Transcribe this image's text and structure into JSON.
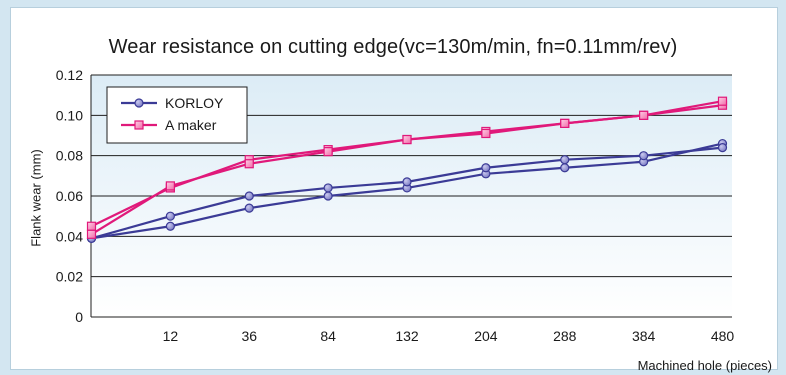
{
  "chart_data": {
    "type": "line",
    "title": "Wear resistance on cutting edge(vc=130m/min, fn=0.11mm/rev)",
    "xlabel": "Machined hole (pieces)",
    "ylabel": "Flank wear (mm)",
    "categories": [
      "",
      "12",
      "36",
      "84",
      "132",
      "204",
      "288",
      "384",
      "480"
    ],
    "yticks": [
      "0",
      "0.02",
      "0.04",
      "0.06",
      "0.08",
      "0.10",
      "0.12"
    ],
    "ylim": [
      0,
      0.12
    ],
    "grid": true,
    "legend_position": "top-left",
    "series": [
      {
        "name": "KORLOY",
        "color": "#3b3b96",
        "marker": "circle",
        "lines": [
          [
            0.039,
            0.045,
            0.054,
            0.06,
            0.064,
            0.071,
            0.074,
            0.077,
            0.086
          ],
          [
            0.039,
            0.05,
            0.06,
            0.064,
            0.067,
            0.074,
            0.078,
            0.08,
            0.084
          ]
        ]
      },
      {
        "name": "A maker",
        "color": "#e0197a",
        "marker": "square",
        "lines": [
          [
            0.045,
            0.064,
            0.078,
            0.083,
            0.088,
            0.092,
            0.096,
            0.1,
            0.105
          ],
          [
            0.041,
            0.065,
            0.076,
            0.082,
            0.088,
            0.091,
            0.096,
            0.1,
            0.107
          ]
        ]
      }
    ]
  }
}
